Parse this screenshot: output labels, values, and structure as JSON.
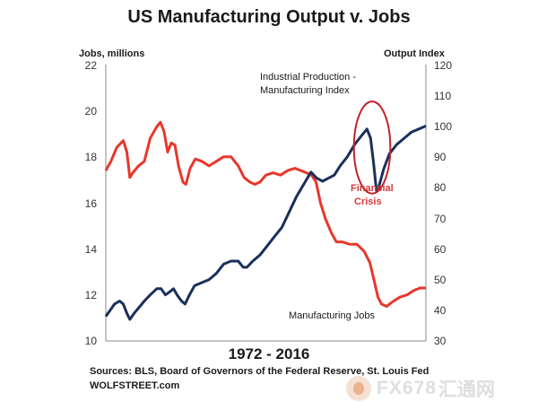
{
  "chart_data": {
    "type": "line",
    "title": "US Manufacturing Output v. Jobs",
    "period": "1972  -  2016",
    "left_axis": {
      "label": "Jobs, millions",
      "range": [
        10,
        22
      ],
      "ticks": [
        "22",
        "20",
        "18",
        "16",
        "14",
        "12",
        "10"
      ]
    },
    "right_axis": {
      "label": "Output Index",
      "range": [
        30,
        120
      ],
      "ticks": [
        "120",
        "110",
        "100",
        "90",
        "80",
        "70",
        "60",
        "50",
        "40",
        "30"
      ]
    },
    "x_range": [
      1972,
      2016
    ],
    "series": [
      {
        "name": "Manufacturing Jobs",
        "axis": "left",
        "color": "#e8372c",
        "points": [
          [
            1972,
            17.4
          ],
          [
            1972.7,
            17.8
          ],
          [
            1973.5,
            18.4
          ],
          [
            1974.4,
            18.7
          ],
          [
            1974.9,
            18.2
          ],
          [
            1975.3,
            17.1
          ],
          [
            1975.7,
            17.3
          ],
          [
            1976.5,
            17.6
          ],
          [
            1977.3,
            17.8
          ],
          [
            1978.1,
            18.8
          ],
          [
            1979,
            19.3
          ],
          [
            1979.5,
            19.5
          ],
          [
            1980,
            19.1
          ],
          [
            1980.5,
            18.2
          ],
          [
            1981,
            18.6
          ],
          [
            1981.5,
            18.5
          ],
          [
            1982,
            17.6
          ],
          [
            1982.6,
            16.9
          ],
          [
            1983,
            16.8
          ],
          [
            1983.6,
            17.5
          ],
          [
            1984.3,
            17.9
          ],
          [
            1985.2,
            17.8
          ],
          [
            1986.2,
            17.6
          ],
          [
            1987.2,
            17.8
          ],
          [
            1988.2,
            18.0
          ],
          [
            1989.2,
            18.0
          ],
          [
            1990.2,
            17.6
          ],
          [
            1991,
            17.1
          ],
          [
            1991.8,
            16.9
          ],
          [
            1992.5,
            16.8
          ],
          [
            1993.2,
            16.9
          ],
          [
            1994,
            17.2
          ],
          [
            1995,
            17.3
          ],
          [
            1996,
            17.2
          ],
          [
            1997,
            17.4
          ],
          [
            1998,
            17.5
          ],
          [
            1998.8,
            17.4
          ],
          [
            1999.6,
            17.3
          ],
          [
            2000.3,
            17.2
          ],
          [
            2000.9,
            16.9
          ],
          [
            2001.5,
            16.0
          ],
          [
            2002.2,
            15.3
          ],
          [
            2003,
            14.7
          ],
          [
            2003.7,
            14.3
          ],
          [
            2004.5,
            14.3
          ],
          [
            2005.5,
            14.2
          ],
          [
            2006.5,
            14.2
          ],
          [
            2007.5,
            13.9
          ],
          [
            2008.3,
            13.4
          ],
          [
            2008.9,
            12.6
          ],
          [
            2009.4,
            11.9
          ],
          [
            2009.9,
            11.6
          ],
          [
            2010.6,
            11.5
          ],
          [
            2011.4,
            11.7
          ],
          [
            2012.4,
            11.9
          ],
          [
            2013.4,
            12.0
          ],
          [
            2014.4,
            12.2
          ],
          [
            2015.2,
            12.3
          ],
          [
            2016,
            12.3
          ]
        ]
      },
      {
        "name": "Industrial Production - Manufacturing Index",
        "axis": "right",
        "color": "#1b2f5a",
        "points": [
          [
            1972,
            38
          ],
          [
            1972.6,
            40
          ],
          [
            1973.2,
            42
          ],
          [
            1973.9,
            43
          ],
          [
            1974.4,
            42
          ],
          [
            1974.9,
            39
          ],
          [
            1975.3,
            37
          ],
          [
            1975.9,
            39
          ],
          [
            1976.6,
            41
          ],
          [
            1977.3,
            43
          ],
          [
            1978.1,
            45
          ],
          [
            1979,
            47
          ],
          [
            1979.6,
            47
          ],
          [
            1980.2,
            45
          ],
          [
            1980.8,
            46
          ],
          [
            1981.3,
            47
          ],
          [
            1981.8,
            45
          ],
          [
            1982.4,
            43
          ],
          [
            1982.9,
            42
          ],
          [
            1983.5,
            45
          ],
          [
            1984.2,
            48
          ],
          [
            1985.2,
            49
          ],
          [
            1986.2,
            50
          ],
          [
            1987.2,
            52
          ],
          [
            1988.2,
            55
          ],
          [
            1989.2,
            56
          ],
          [
            1990.2,
            56
          ],
          [
            1990.9,
            54
          ],
          [
            1991.4,
            54
          ],
          [
            1992.2,
            56
          ],
          [
            1993.2,
            58
          ],
          [
            1994.2,
            61
          ],
          [
            1995.2,
            64
          ],
          [
            1996.2,
            67
          ],
          [
            1997.2,
            72
          ],
          [
            1998.2,
            77
          ],
          [
            1999.2,
            81
          ],
          [
            2000.2,
            85
          ],
          [
            2001,
            83
          ],
          [
            2001.8,
            82
          ],
          [
            2002.6,
            83
          ],
          [
            2003.4,
            84
          ],
          [
            2004.2,
            87
          ],
          [
            2005.2,
            90
          ],
          [
            2006.2,
            94
          ],
          [
            2007.2,
            97
          ],
          [
            2007.9,
            99
          ],
          [
            2008.4,
            96
          ],
          [
            2008.8,
            88
          ],
          [
            2009.2,
            79
          ],
          [
            2009.5,
            80
          ],
          [
            2010.2,
            86
          ],
          [
            2011,
            91
          ],
          [
            2012,
            94
          ],
          [
            2013,
            96
          ],
          [
            2014,
            98
          ],
          [
            2015,
            99
          ],
          [
            2016,
            100
          ]
        ]
      }
    ],
    "annotations": {
      "output_line1": "Industrial Production -",
      "output_line2": "Manufacturing Index",
      "crisis_line1": "Financial",
      "crisis_line2": "Crisis",
      "jobs": "Manufacturing Jobs"
    },
    "highlight": {
      "shape": "ellipse",
      "color": "#c0232b",
      "x_center": 2008.6,
      "y_center_right": 93,
      "x_radius_years": 2.5,
      "y_radius_right": 15
    }
  },
  "source_text": "Sources: BLS, Board of Governors of the Federal Reserve, St. Louis Fed",
  "brand": "WOLFSTREET.com",
  "watermark": {
    "text": "FX678",
    "cn": "汇通网"
  }
}
